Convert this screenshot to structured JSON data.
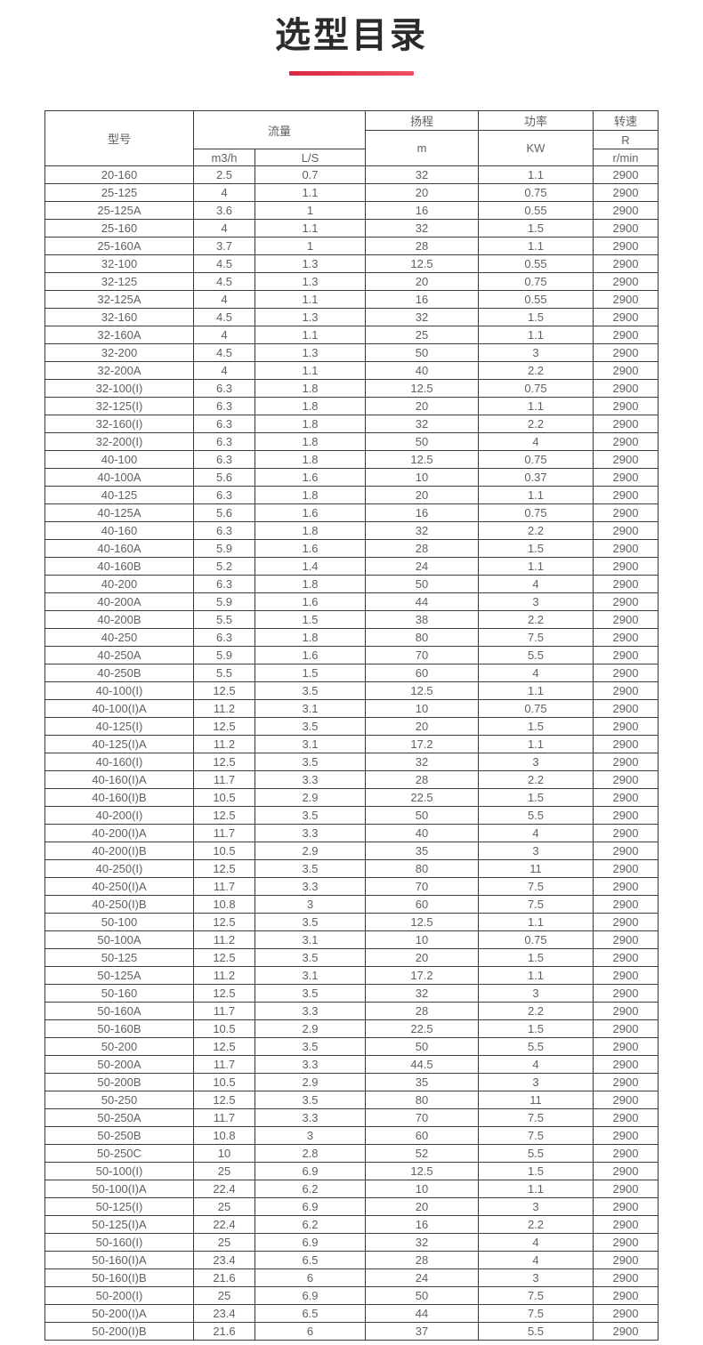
{
  "page": {
    "title": "选型目录"
  },
  "colors": {
    "accent_red": "#e0304c",
    "border": "#3a3a3a",
    "body_text": "#606060",
    "title_text": "#2b2b2b"
  },
  "table": {
    "header": {
      "model": "型号",
      "flow": "流量",
      "flow_unit_m3h": "m3/h",
      "flow_unit_ls": "L/S",
      "head": "扬程",
      "head_unit": "m",
      "power": "功率",
      "power_unit": "KW",
      "speed": "转速",
      "speed_unit_r": "R",
      "speed_unit_rmin": "r/min"
    },
    "columns": [
      "model",
      "flow_m3h",
      "flow_ls",
      "head_m",
      "power_kw",
      "speed_rmin"
    ],
    "rows": [
      [
        "20-160",
        "2.5",
        "0.7",
        "32",
        "1.1",
        "2900"
      ],
      [
        "25-125",
        "4",
        "1.1",
        "20",
        "0.75",
        "2900"
      ],
      [
        "25-125A",
        "3.6",
        "1",
        "16",
        "0.55",
        "2900"
      ],
      [
        "25-160",
        "4",
        "1.1",
        "32",
        "1.5",
        "2900"
      ],
      [
        "25-160A",
        "3.7",
        "1",
        "28",
        "1.1",
        "2900"
      ],
      [
        "32-100",
        "4.5",
        "1.3",
        "12.5",
        "0.55",
        "2900"
      ],
      [
        "32-125",
        "4.5",
        "1.3",
        "20",
        "0.75",
        "2900"
      ],
      [
        "32-125A",
        "4",
        "1.1",
        "16",
        "0.55",
        "2900"
      ],
      [
        "32-160",
        "4.5",
        "1.3",
        "32",
        "1.5",
        "2900"
      ],
      [
        "32-160A",
        "4",
        "1.1",
        "25",
        "1.1",
        "2900"
      ],
      [
        "32-200",
        "4.5",
        "1.3",
        "50",
        "3",
        "2900"
      ],
      [
        "32-200A",
        "4",
        "1.1",
        "40",
        "2.2",
        "2900"
      ],
      [
        "32-100(I)",
        "6.3",
        "1.8",
        "12.5",
        "0.75",
        "2900"
      ],
      [
        "32-125(I)",
        "6.3",
        "1.8",
        "20",
        "1.1",
        "2900"
      ],
      [
        "32-160(I)",
        "6.3",
        "1.8",
        "32",
        "2.2",
        "2900"
      ],
      [
        "32-200(I)",
        "6.3",
        "1.8",
        "50",
        "4",
        "2900"
      ],
      [
        "40-100",
        "6.3",
        "1.8",
        "12.5",
        "0.75",
        "2900"
      ],
      [
        "40-100A",
        "5.6",
        "1.6",
        "10",
        "0.37",
        "2900"
      ],
      [
        "40-125",
        "6.3",
        "1.8",
        "20",
        "1.1",
        "2900"
      ],
      [
        "40-125A",
        "5.6",
        "1.6",
        "16",
        "0.75",
        "2900"
      ],
      [
        "40-160",
        "6.3",
        "1.8",
        "32",
        "2.2",
        "2900"
      ],
      [
        "40-160A",
        "5.9",
        "1.6",
        "28",
        "1.5",
        "2900"
      ],
      [
        "40-160B",
        "5.2",
        "1.4",
        "24",
        "1.1",
        "2900"
      ],
      [
        "40-200",
        "6.3",
        "1.8",
        "50",
        "4",
        "2900"
      ],
      [
        "40-200A",
        "5.9",
        "1.6",
        "44",
        "3",
        "2900"
      ],
      [
        "40-200B",
        "5.5",
        "1.5",
        "38",
        "2.2",
        "2900"
      ],
      [
        "40-250",
        "6.3",
        "1.8",
        "80",
        "7.5",
        "2900"
      ],
      [
        "40-250A",
        "5.9",
        "1.6",
        "70",
        "5.5",
        "2900"
      ],
      [
        "40-250B",
        "5.5",
        "1.5",
        "60",
        "4",
        "2900"
      ],
      [
        "40-100(I)",
        "12.5",
        "3.5",
        "12.5",
        "1.1",
        "2900"
      ],
      [
        "40-100(I)A",
        "11.2",
        "3.1",
        "10",
        "0.75",
        "2900"
      ],
      [
        "40-125(I)",
        "12.5",
        "3.5",
        "20",
        "1.5",
        "2900"
      ],
      [
        "40-125(I)A",
        "11.2",
        "3.1",
        "17.2",
        "1.1",
        "2900"
      ],
      [
        "40-160(I)",
        "12.5",
        "3.5",
        "32",
        "3",
        "2900"
      ],
      [
        "40-160(I)A",
        "11.7",
        "3.3",
        "28",
        "2.2",
        "2900"
      ],
      [
        "40-160(I)B",
        "10.5",
        "2.9",
        "22.5",
        "1.5",
        "2900"
      ],
      [
        "40-200(I)",
        "12.5",
        "3.5",
        "50",
        "5.5",
        "2900"
      ],
      [
        "40-200(I)A",
        "11.7",
        "3.3",
        "40",
        "4",
        "2900"
      ],
      [
        "40-200(I)B",
        "10.5",
        "2.9",
        "35",
        "3",
        "2900"
      ],
      [
        "40-250(I)",
        "12.5",
        "3.5",
        "80",
        "11",
        "2900"
      ],
      [
        "40-250(I)A",
        "11.7",
        "3.3",
        "70",
        "7.5",
        "2900"
      ],
      [
        "40-250(I)B",
        "10.8",
        "3",
        "60",
        "7.5",
        "2900"
      ],
      [
        "50-100",
        "12.5",
        "3.5",
        "12.5",
        "1.1",
        "2900"
      ],
      [
        "50-100A",
        "11.2",
        "3.1",
        "10",
        "0.75",
        "2900"
      ],
      [
        "50-125",
        "12.5",
        "3.5",
        "20",
        "1.5",
        "2900"
      ],
      [
        "50-125A",
        "11.2",
        "3.1",
        "17.2",
        "1.1",
        "2900"
      ],
      [
        "50-160",
        "12.5",
        "3.5",
        "32",
        "3",
        "2900"
      ],
      [
        "50-160A",
        "11.7",
        "3.3",
        "28",
        "2.2",
        "2900"
      ],
      [
        "50-160B",
        "10.5",
        "2.9",
        "22.5",
        "1.5",
        "2900"
      ],
      [
        "50-200",
        "12.5",
        "3.5",
        "50",
        "5.5",
        "2900"
      ],
      [
        "50-200A",
        "11.7",
        "3.3",
        "44.5",
        "4",
        "2900"
      ],
      [
        "50-200B",
        "10.5",
        "2.9",
        "35",
        "3",
        "2900"
      ],
      [
        "50-250",
        "12.5",
        "3.5",
        "80",
        "11",
        "2900"
      ],
      [
        "50-250A",
        "11.7",
        "3.3",
        "70",
        "7.5",
        "2900"
      ],
      [
        "50-250B",
        "10.8",
        "3",
        "60",
        "7.5",
        "2900"
      ],
      [
        "50-250C",
        "10",
        "2.8",
        "52",
        "5.5",
        "2900"
      ],
      [
        "50-100(I)",
        "25",
        "6.9",
        "12.5",
        "1.5",
        "2900"
      ],
      [
        "50-100(I)A",
        "22.4",
        "6.2",
        "10",
        "1.1",
        "2900"
      ],
      [
        "50-125(I)",
        "25",
        "6.9",
        "20",
        "3",
        "2900"
      ],
      [
        "50-125(I)A",
        "22.4",
        "6.2",
        "16",
        "2.2",
        "2900"
      ],
      [
        "50-160(I)",
        "25",
        "6.9",
        "32",
        "4",
        "2900"
      ],
      [
        "50-160(I)A",
        "23.4",
        "6.5",
        "28",
        "4",
        "2900"
      ],
      [
        "50-160(I)B",
        "21.6",
        "6",
        "24",
        "3",
        "2900"
      ],
      [
        "50-200(I)",
        "25",
        "6.9",
        "50",
        "7.5",
        "2900"
      ],
      [
        "50-200(I)A",
        "23.4",
        "6.5",
        "44",
        "7.5",
        "2900"
      ],
      [
        "50-200(I)B",
        "21.6",
        "6",
        "37",
        "5.5",
        "2900"
      ]
    ]
  }
}
